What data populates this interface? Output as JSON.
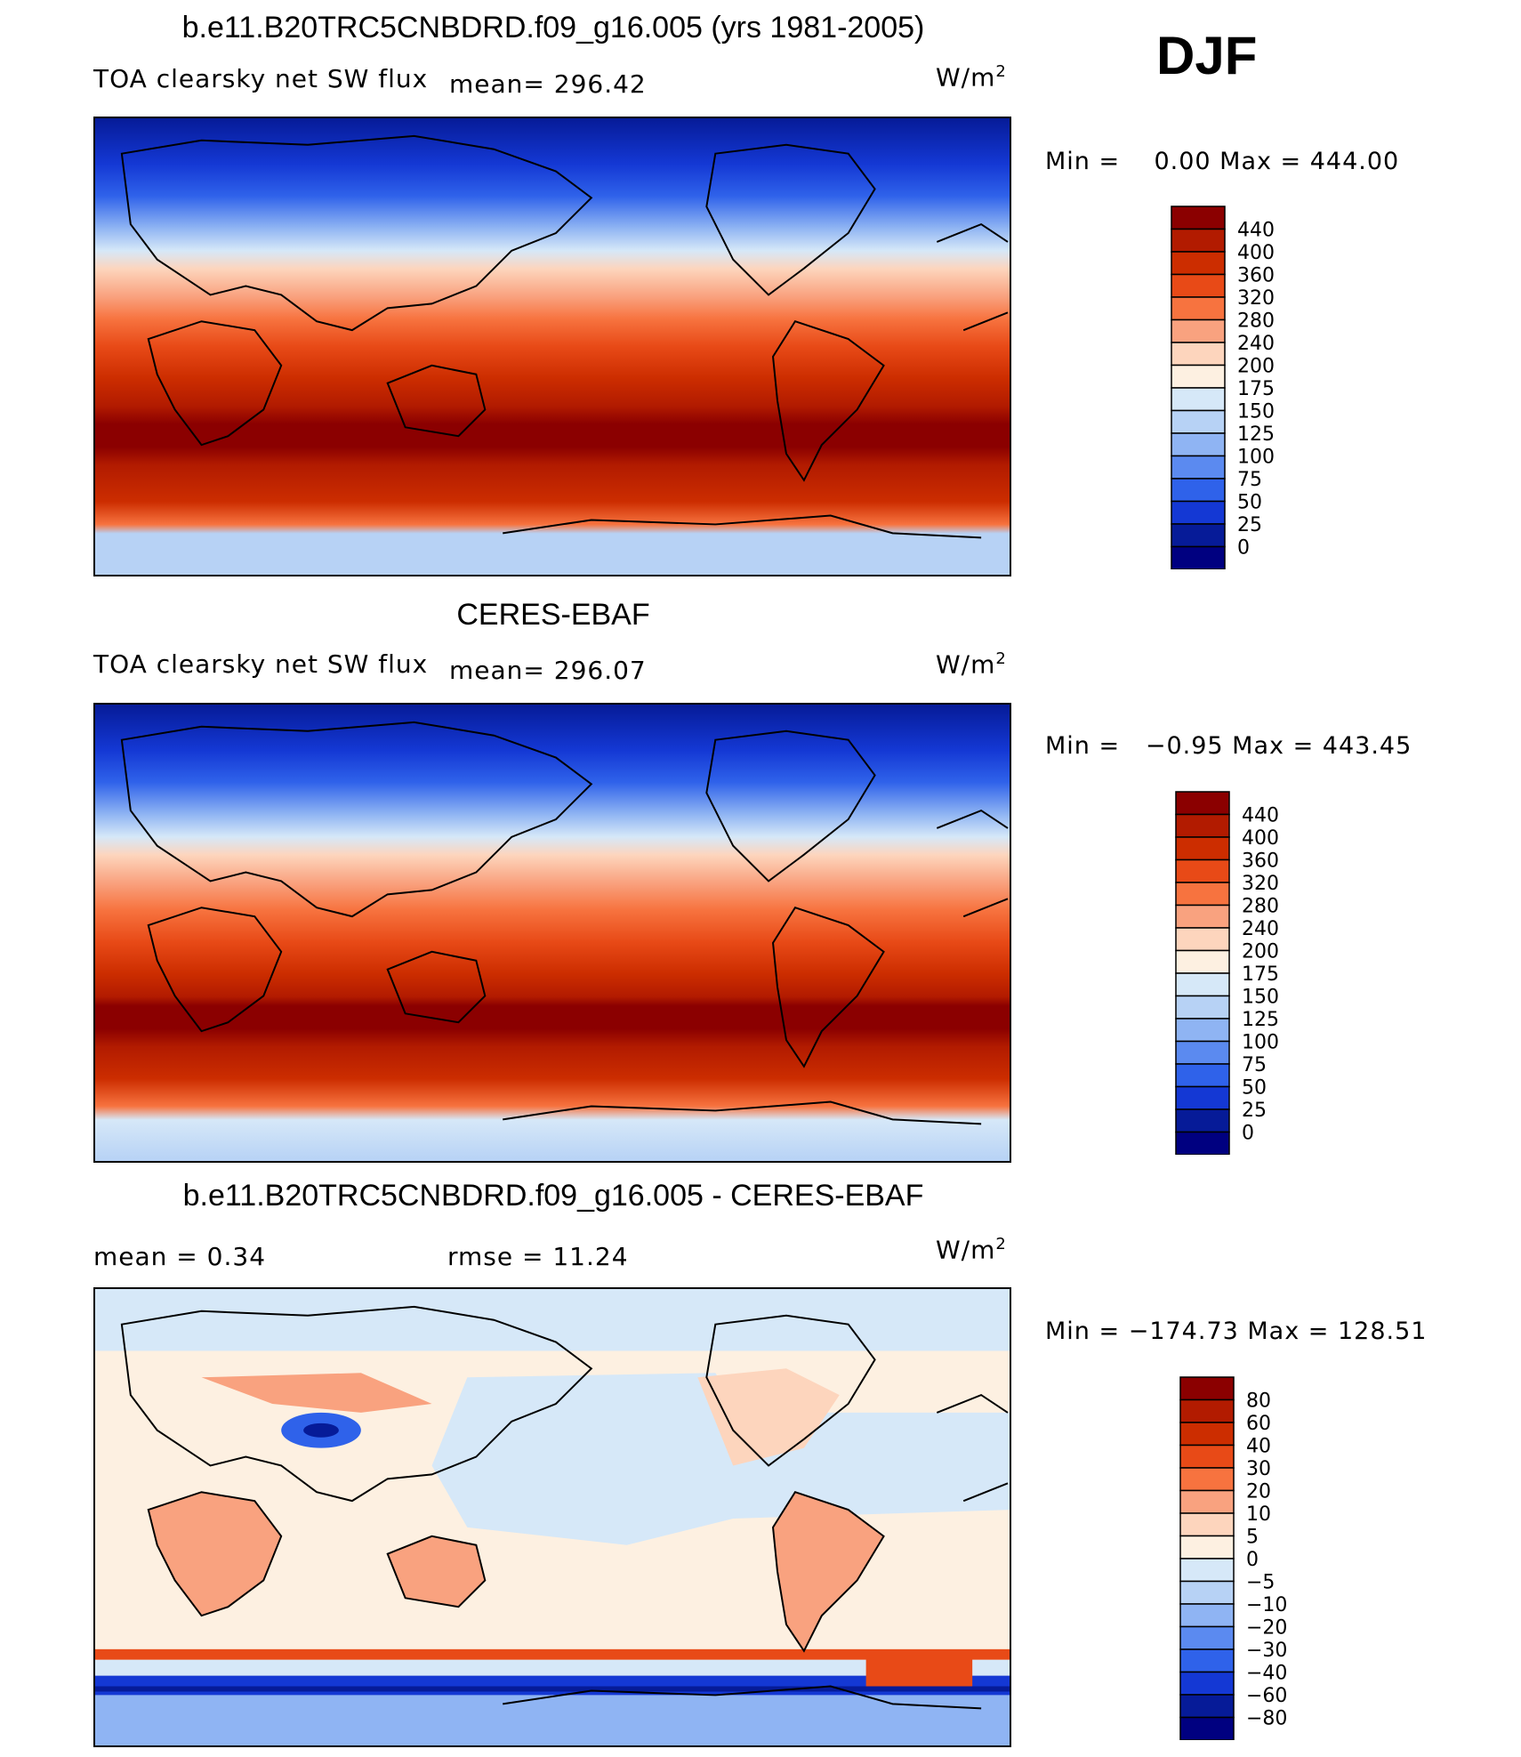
{
  "season": "DJF",
  "units_label": "W/m",
  "units_sup": "2",
  "panels": [
    {
      "title": "b.e11.B20TRC5CNBDRD.f09_g16.005 (yrs 1981-2005)",
      "left_label": "TOA clearsky net SW flux",
      "mean_label": "mean=  296.42",
      "minmax": "Min =    0.00 Max = 444.00",
      "colorbar": {
        "labels": [
          "440",
          "400",
          "360",
          "320",
          "280",
          "240",
          "200",
          "175",
          "150",
          "125",
          "100",
          "75",
          "50",
          "25",
          "0"
        ],
        "colors": [
          "#8b0000",
          "#b21b00",
          "#cc2d00",
          "#e84a17",
          "#f7733f",
          "#f9a27f",
          "#fdd5bd",
          "#fdf0e1",
          "#d6e8f8",
          "#b7d2f5",
          "#8fb4f3",
          "#5b8af0",
          "#2f62ea",
          "#1438d4",
          "#061b98",
          "#000080"
        ]
      }
    },
    {
      "title": "CERES-EBAF",
      "left_label": "TOA clearsky net SW flux",
      "mean_label": "mean=  296.07",
      "minmax": "Min =   −0.95 Max = 443.45",
      "colorbar": {
        "labels": [
          "440",
          "400",
          "360",
          "320",
          "280",
          "240",
          "200",
          "175",
          "150",
          "125",
          "100",
          "75",
          "50",
          "25",
          "0"
        ],
        "colors": [
          "#8b0000",
          "#b21b00",
          "#cc2d00",
          "#e84a17",
          "#f7733f",
          "#f9a27f",
          "#fdd5bd",
          "#fdf0e1",
          "#d6e8f8",
          "#b7d2f5",
          "#8fb4f3",
          "#5b8af0",
          "#2f62ea",
          "#1438d4",
          "#061b98",
          "#000080"
        ]
      }
    },
    {
      "title": "b.e11.B20TRC5CNBDRD.f09_g16.005 - CERES-EBAF",
      "mean_label": "mean =    0.34",
      "rmse_label": "rmse =   11.24",
      "minmax": "Min = −174.73 Max = 128.51",
      "colorbar": {
        "labels": [
          "80",
          "60",
          "40",
          "30",
          "20",
          "10",
          "5",
          "0",
          "−5",
          "−10",
          "−20",
          "−30",
          "−40",
          "−60",
          "−80"
        ],
        "colors": [
          "#8b0000",
          "#b21b00",
          "#cc2d00",
          "#e84a17",
          "#f7733f",
          "#f9a27f",
          "#fdd5bd",
          "#fdf0e1",
          "#d6e8f8",
          "#b7d2f5",
          "#8fb4f3",
          "#5b8af0",
          "#2f62ea",
          "#1438d4",
          "#061b98",
          "#000080"
        ]
      }
    }
  ]
}
